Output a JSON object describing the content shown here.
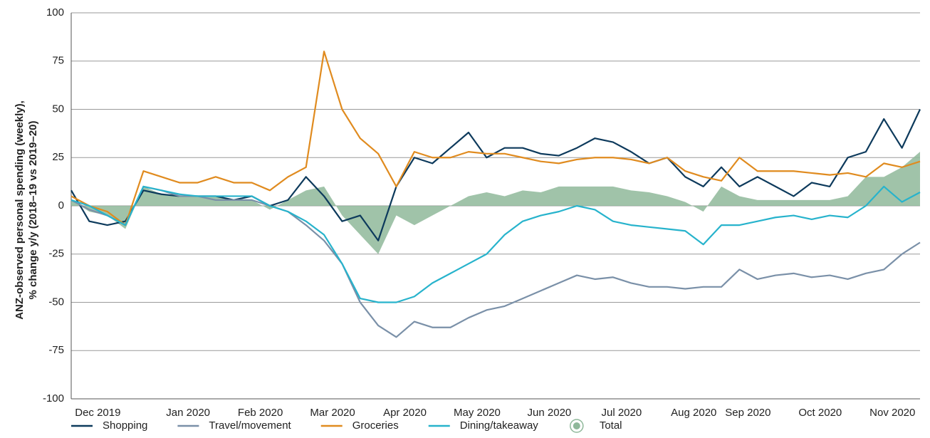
{
  "chart_data": {
    "type": "line",
    "y_label": [
      "ANZ-observed personal spending (weekly),",
      "% change y/y (2018–19 vs 2019–20)"
    ],
    "categories": [
      null,
      "Dec 2019",
      null,
      null,
      null,
      null,
      "Jan 2020",
      null,
      null,
      null,
      "Feb 2020",
      null,
      null,
      null,
      "Mar 2020",
      null,
      null,
      null,
      "Apr 2020",
      null,
      null,
      null,
      "May 2020",
      null,
      null,
      null,
      "Jun 2020",
      null,
      null,
      null,
      "Jul 2020",
      null,
      null,
      null,
      "Aug 2020",
      null,
      null,
      "Sep 2020",
      null,
      null,
      null,
      "Oct 2020",
      null,
      null,
      null,
      "Nov 2020",
      null,
      null
    ],
    "series": [
      {
        "name": "Shopping",
        "color": "#0d3a5c",
        "style": "line",
        "values": [
          8,
          -8,
          -10,
          -8,
          8,
          6,
          5,
          5,
          5,
          3,
          5,
          0,
          3,
          15,
          5,
          -8,
          -5,
          -18,
          10,
          25,
          22,
          30,
          38,
          25,
          30,
          30,
          27,
          26,
          30,
          35,
          33,
          28,
          22,
          25,
          15,
          10,
          20,
          10,
          15,
          10,
          5,
          12,
          10,
          25,
          28,
          45,
          30,
          50
        ]
      },
      {
        "name": "Travel/movement",
        "color": "#7a90a8",
        "style": "line",
        "values": [
          3,
          -2,
          -5,
          -10,
          10,
          8,
          5,
          5,
          3,
          3,
          3,
          0,
          -3,
          -10,
          -18,
          -30,
          -50,
          -62,
          -68,
          -60,
          -63,
          -63,
          -58,
          -54,
          -52,
          -48,
          -44,
          -40,
          -36,
          -38,
          -37,
          -40,
          -42,
          -42,
          -43,
          -42,
          -42,
          -33,
          -38,
          -36,
          -35,
          -37,
          -36,
          -38,
          -35,
          -33,
          -25,
          -19
        ]
      },
      {
        "name": "Groceries",
        "color": "#e08b1f",
        "style": "line",
        "values": [
          5,
          0,
          -3,
          -10,
          18,
          15,
          12,
          12,
          15,
          12,
          12,
          8,
          15,
          20,
          80,
          50,
          35,
          27,
          10,
          28,
          25,
          25,
          28,
          27,
          27,
          25,
          23,
          22,
          24,
          25,
          25,
          24,
          22,
          25,
          18,
          15,
          13,
          25,
          18,
          18,
          18,
          17,
          16,
          17,
          15,
          22,
          20,
          23
        ]
      },
      {
        "name": "Dining/takeaway",
        "color": "#27b3cc",
        "style": "line",
        "values": [
          3,
          0,
          -5,
          -10,
          10,
          8,
          6,
          5,
          5,
          5,
          5,
          0,
          -3,
          -8,
          -15,
          -30,
          -48,
          -50,
          -50,
          -47,
          -40,
          -35,
          -30,
          -25,
          -15,
          -8,
          -5,
          -3,
          0,
          -2,
          -8,
          -10,
          -11,
          -12,
          -13,
          -20,
          -10,
          -10,
          -8,
          -6,
          -5,
          -7,
          -5,
          -6,
          0,
          10,
          2,
          7
        ]
      },
      {
        "name": "Total",
        "color": "#8fb89a",
        "style": "area",
        "values": [
          3,
          -3,
          -5,
          -12,
          10,
          6,
          5,
          5,
          5,
          3,
          3,
          -2,
          3,
          8,
          10,
          -5,
          -15,
          -25,
          -5,
          -10,
          -5,
          0,
          5,
          7,
          5,
          8,
          7,
          10,
          10,
          10,
          10,
          8,
          7,
          5,
          2,
          -3,
          10,
          5,
          3,
          3,
          3,
          3,
          3,
          5,
          15,
          15,
          20,
          28
        ]
      }
    ],
    "ylim": [
      -100,
      100
    ],
    "yticks": [
      -100,
      -75,
      -50,
      -25,
      0,
      25,
      50,
      75,
      100
    ],
    "grid": true,
    "legend": "bottom"
  }
}
